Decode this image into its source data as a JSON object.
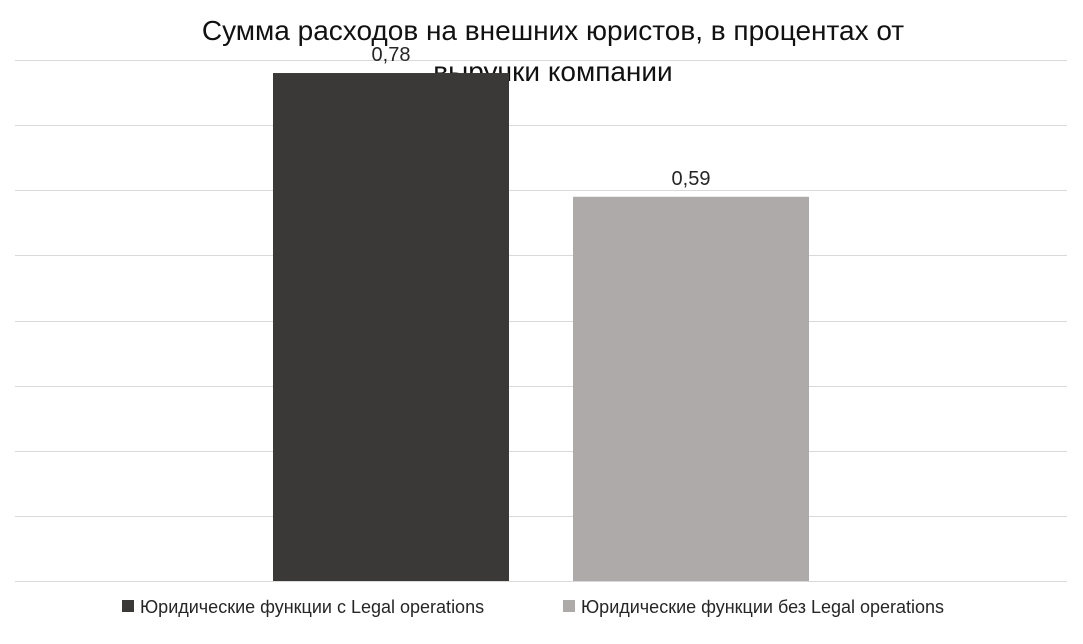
{
  "chart_data": {
    "type": "bar",
    "title": "Сумма расходов на внешних юристов, в процентах от выручки компании",
    "title_lines": [
      "Сумма расходов на внешних юристов, в процентах от",
      "выручки компании"
    ],
    "categories": [
      ""
    ],
    "series": [
      {
        "name": "Юридические функции с Legal operations",
        "values": [
          0.78
        ],
        "label": "0,78",
        "color": "#3a3937"
      },
      {
        "name": "Юридические функции без Legal operations",
        "values": [
          0.59
        ],
        "label": "0,59",
        "color": "#aeaaaa"
      }
    ],
    "xlabel": "",
    "ylabel": "",
    "ylim": [
      0,
      0.8
    ],
    "grid": true,
    "legend": "bottom",
    "gridline_color": "#d9d9d9",
    "text_color": "#262626"
  }
}
